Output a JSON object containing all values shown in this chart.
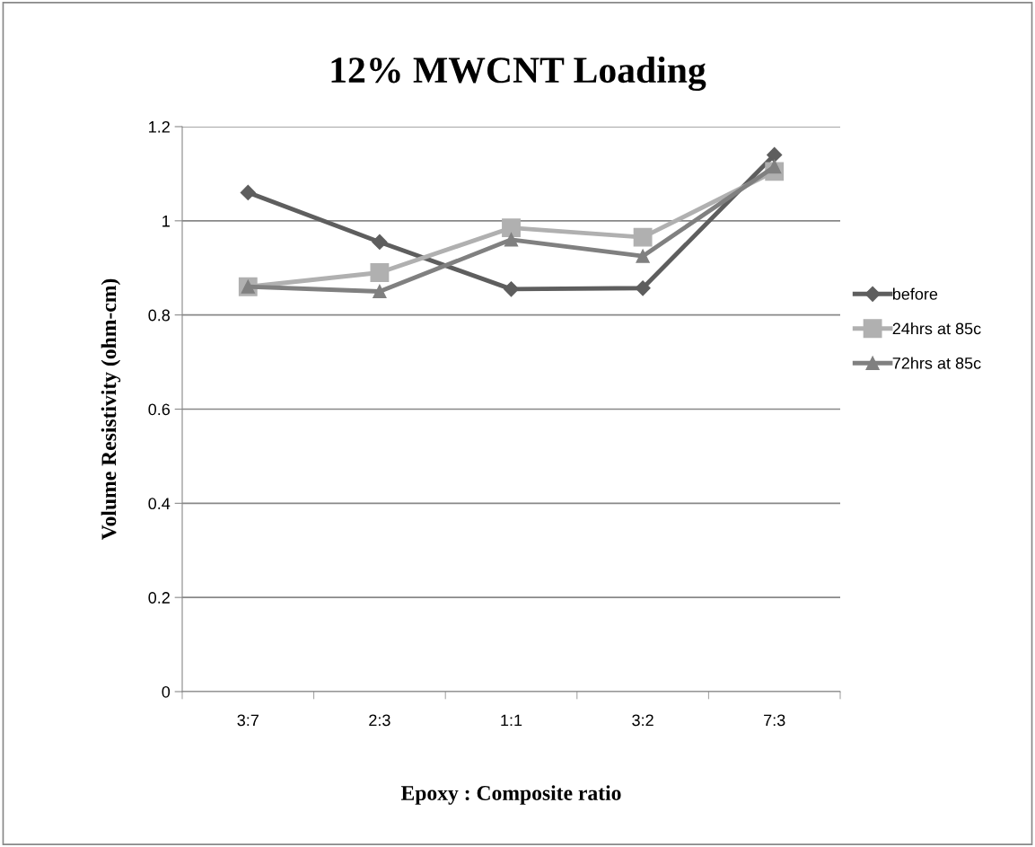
{
  "chart_data": {
    "type": "line",
    "title": "12% MWCNT Loading",
    "xlabel": "Epoxy : Composite ratio",
    "ylabel": "Volume Resistivity (ohm-cm)",
    "categories": [
      "3:7",
      "2:3",
      "1:1",
      "3:2",
      "7:3"
    ],
    "series": [
      {
        "name": "before",
        "color": "#5e5e5e",
        "marker": "diamond",
        "values": [
          1.06,
          0.955,
          0.855,
          0.857,
          1.14
        ]
      },
      {
        "name": "24hrs at 85c",
        "color": "#b0b0b0",
        "marker": "square",
        "values": [
          0.86,
          0.89,
          0.985,
          0.965,
          1.105
        ]
      },
      {
        "name": "72hrs at 85c",
        "color": "#808080",
        "marker": "triangle",
        "values": [
          0.86,
          0.85,
          0.96,
          0.925,
          1.115
        ]
      }
    ],
    "ylim": [
      0,
      1.2
    ],
    "yticks": [
      0,
      0.2,
      0.4,
      0.6,
      0.8,
      1,
      1.2
    ],
    "grid": "y",
    "legend": "right",
    "line_style": "solid"
  }
}
